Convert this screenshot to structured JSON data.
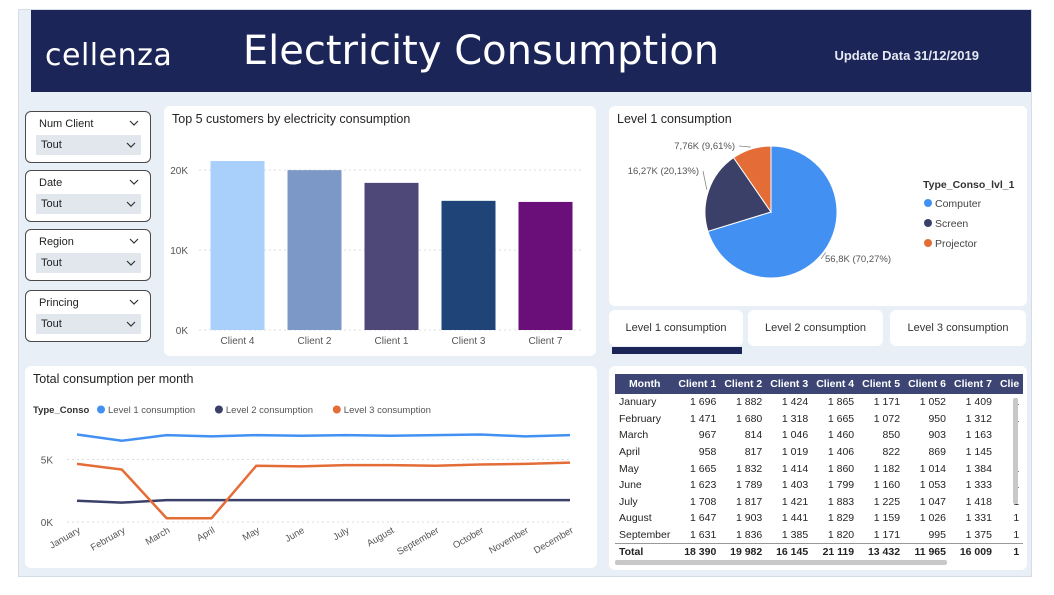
{
  "header": {
    "logo": "cellenza",
    "title": "Electricity Consumption",
    "update": "Update Data 31/12/2019"
  },
  "filters": [
    {
      "label": "Num Client",
      "value": "Tout"
    },
    {
      "label": "Date",
      "value": "Tout"
    },
    {
      "label": "Region",
      "value": "Tout"
    },
    {
      "label": "Princing",
      "value": "Tout"
    }
  ],
  "bar_card": {
    "title": "Top 5 customers by electricity consumption"
  },
  "pie_card": {
    "title": "Level 1 consumption"
  },
  "line_card": {
    "title": "Total consumption per month"
  },
  "tabs": [
    "Level 1 consumption",
    "Level 2 consumption",
    "Level 3 consumption"
  ],
  "colors": {
    "header": "#1b2557",
    "level1": "#4291f2",
    "level2": "#3b4069",
    "level3": "#e46c36"
  },
  "chart_data": [
    {
      "type": "bar",
      "title": "Top 5 customers by electricity consumption",
      "categories": [
        "Client 4",
        "Client 2",
        "Client 1",
        "Client 3",
        "Client 7"
      ],
      "values": [
        21119,
        19982,
        18390,
        16145,
        16009
      ],
      "colors": [
        "#a8d0fb",
        "#7b98c6",
        "#4d4878",
        "#1e4478",
        "#6a0f7a"
      ],
      "yticks": [
        "0K",
        "10K",
        "20K"
      ],
      "ylim": [
        0,
        22500
      ],
      "grid": true
    },
    {
      "type": "pie",
      "title": "Level 1 consumption",
      "legend_title": "Type_Conso_lvl_1",
      "legend_position": "right",
      "slices": [
        {
          "label": "Computer",
          "value": 56.8,
          "text": "56,8K (70,27%)",
          "color": "#4291f2"
        },
        {
          "label": "Screen",
          "value": 16.27,
          "text": "16,27K (20,13%)",
          "color": "#3b4069"
        },
        {
          "label": "Projector",
          "value": 7.76,
          "text": "7,76K (9,61%)",
          "color": "#e46c36"
        }
      ]
    },
    {
      "type": "line",
      "title": "Total consumption per month",
      "legend_title": "Type_Conso",
      "legend_position": "top-left",
      "categories": [
        "January",
        "February",
        "March",
        "April",
        "May",
        "June",
        "July",
        "August",
        "September",
        "October",
        "November",
        "December"
      ],
      "yticks": [
        "0K",
        "5K"
      ],
      "ylim": [
        0,
        8000
      ],
      "series": [
        {
          "name": "Level 1 consumption",
          "color": "#4291f2",
          "values": [
            7000,
            6500,
            6950,
            6850,
            6950,
            6900,
            6950,
            6900,
            6950,
            7000,
            6850,
            6950
          ]
        },
        {
          "name": "Level 2 consumption",
          "color": "#3b4069",
          "values": [
            1700,
            1550,
            1750,
            1750,
            1750,
            1750,
            1750,
            1750,
            1750,
            1750,
            1750,
            1750
          ]
        },
        {
          "name": "Level 3 consumption",
          "color": "#e46c36",
          "values": [
            4650,
            4200,
            300,
            300,
            4500,
            4450,
            4550,
            4550,
            4500,
            4600,
            4650,
            4750
          ]
        }
      ]
    },
    {
      "type": "table",
      "columns": [
        "Month",
        "Client 1",
        "Client 2",
        "Client 3",
        "Client 4",
        "Client 5",
        "Client 6",
        "Client 7",
        "Clie"
      ],
      "rows": [
        [
          "January",
          "1 696",
          "1 882",
          "1 424",
          "1 865",
          "1 171",
          "1 052",
          "1 409",
          "1"
        ],
        [
          "February",
          "1 471",
          "1 680",
          "1 318",
          "1 665",
          "1 072",
          "950",
          "1 312",
          "1"
        ],
        [
          "March",
          "967",
          "814",
          "1 046",
          "1 460",
          "850",
          "903",
          "1 163",
          ""
        ],
        [
          "April",
          "958",
          "817",
          "1 019",
          "1 406",
          "822",
          "869",
          "1 145",
          ""
        ],
        [
          "May",
          "1 665",
          "1 832",
          "1 414",
          "1 860",
          "1 182",
          "1 014",
          "1 384",
          "1"
        ],
        [
          "June",
          "1 623",
          "1 789",
          "1 403",
          "1 799",
          "1 160",
          "1 053",
          "1 333",
          "1"
        ],
        [
          "July",
          "1 708",
          "1 817",
          "1 421",
          "1 883",
          "1 225",
          "1 047",
          "1 418",
          "1"
        ],
        [
          "August",
          "1 647",
          "1 903",
          "1 441",
          "1 829",
          "1 159",
          "1 026",
          "1 331",
          "1"
        ],
        [
          "September",
          "1 631",
          "1 836",
          "1 385",
          "1 820",
          "1 171",
          "995",
          "1 375",
          "1"
        ]
      ],
      "total": [
        "Total",
        "18 390",
        "19 982",
        "16 145",
        "21 119",
        "13 432",
        "11 965",
        "16 009",
        "1"
      ]
    }
  ]
}
